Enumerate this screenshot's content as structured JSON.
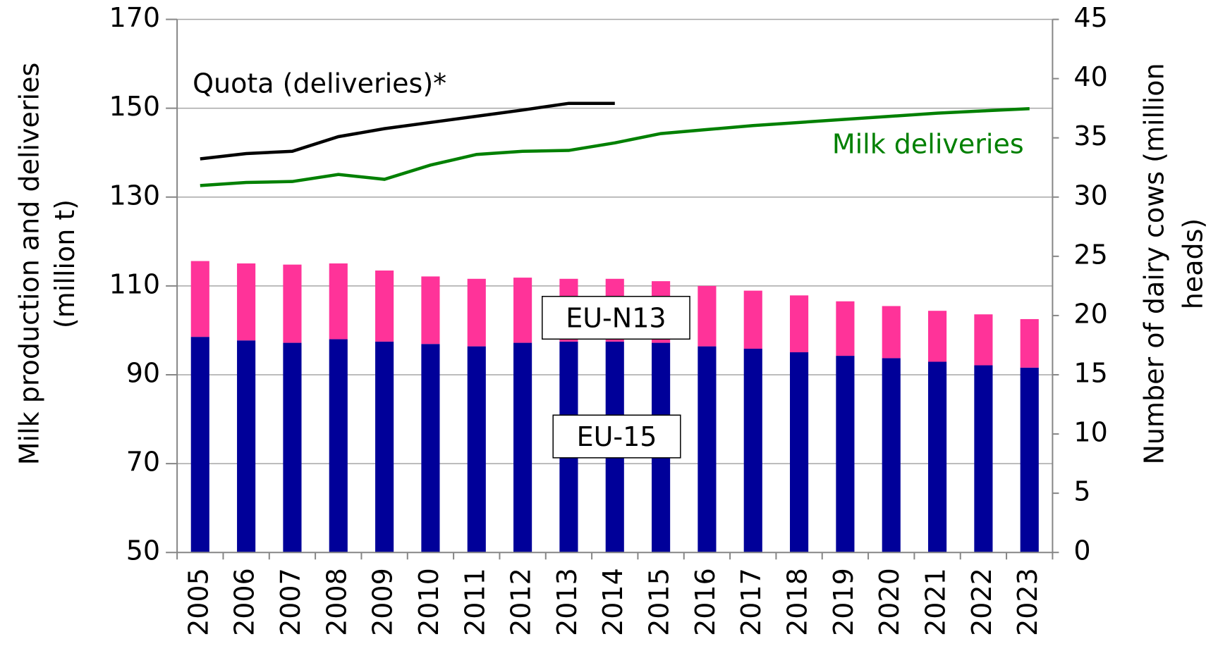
{
  "chart_data": {
    "type": "bar",
    "y_label": [
      "Milk production and deliveries",
      "(million t)"
    ],
    "y2_label": [
      "Number of dairy cows (million",
      "heads)"
    ],
    "categories": [
      "2005",
      "2006",
      "2007",
      "2008",
      "2009",
      "2010",
      "2011",
      "2012",
      "2013",
      "2014",
      "2015",
      "2016",
      "2017",
      "2018",
      "2019",
      "2020",
      "2021",
      "2022",
      "2023"
    ],
    "series": [
      {
        "name": "EU-15",
        "type": "bar",
        "axis": "y2",
        "color": "#000099",
        "values": [
          18.2,
          17.9,
          17.7,
          18.0,
          17.8,
          17.6,
          17.4,
          17.7,
          17.8,
          17.8,
          17.7,
          17.4,
          17.2,
          16.9,
          16.6,
          16.4,
          16.1,
          15.8,
          15.6
        ]
      },
      {
        "name": "EU-N13",
        "type": "bar",
        "axis": "y2",
        "color": "#ff3399",
        "values": [
          6.4,
          6.5,
          6.6,
          6.4,
          6.0,
          5.7,
          5.7,
          5.5,
          5.3,
          5.3,
          5.2,
          5.1,
          4.9,
          4.8,
          4.6,
          4.4,
          4.3,
          4.3,
          4.1
        ]
      },
      {
        "name": "Quota (deliveries)*",
        "type": "line",
        "axis": "y",
        "color": "#000000",
        "values": [
          138.6,
          139.8,
          140.3,
          143.6,
          145.4,
          146.8,
          148.2,
          149.6,
          151.1,
          151.1,
          null,
          null,
          null,
          null,
          null,
          null,
          null,
          null,
          null
        ]
      },
      {
        "name": "Milk deliveries",
        "type": "line",
        "axis": "y",
        "color": "#008000",
        "values": [
          132.6,
          133.3,
          133.5,
          135.1,
          134.0,
          137.2,
          139.6,
          140.3,
          140.5,
          142.2,
          144.3,
          145.2,
          146.1,
          146.8,
          147.5,
          148.2,
          148.9,
          149.4,
          149.9
        ]
      }
    ],
    "ylim": [
      50,
      170
    ],
    "yticks": [
      50,
      70,
      90,
      110,
      130,
      150,
      170
    ],
    "y2lim": [
      0,
      45
    ],
    "y2ticks": [
      0,
      5,
      10,
      15,
      20,
      25,
      30,
      35,
      40,
      45
    ],
    "grid": true
  }
}
